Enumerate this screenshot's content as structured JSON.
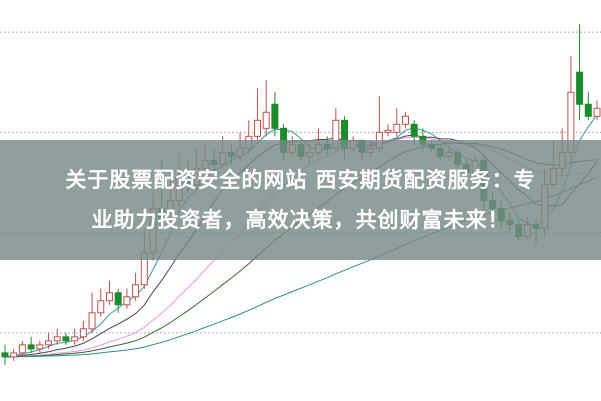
{
  "banner": {
    "line1": "关于股票配资安全的网站 西安期货配资服务：专",
    "line2": "业助力投资者，高效决策，共创财富未来！"
  },
  "colors": {
    "up": "#c0504d",
    "down": "#1e8a2e",
    "grid": "#9a9a9a",
    "ma_lines": [
      "#3a9aa0",
      "#5a3a5a",
      "#e79ad8",
      "#2f6b2f",
      "#2f8a8a"
    ]
  },
  "chart_data": {
    "type": "candlestick",
    "title": "",
    "xlabel": "",
    "ylabel": "",
    "ylim": [
      0,
      100
    ],
    "grid": true,
    "gridlines_y": [
      17,
      42,
      67,
      92
    ],
    "moving_average_periods": [
      5,
      10,
      20,
      30,
      60
    ],
    "ohlc": [
      [
        12,
        14,
        9,
        11
      ],
      [
        11,
        13,
        10,
        12
      ],
      [
        12,
        15,
        11,
        14
      ],
      [
        14,
        16,
        12,
        13
      ],
      [
        13,
        15,
        12,
        14
      ],
      [
        14,
        17,
        13,
        15
      ],
      [
        15,
        18,
        14,
        16
      ],
      [
        16,
        17,
        14,
        15
      ],
      [
        15,
        18,
        14,
        16
      ],
      [
        16,
        20,
        15,
        18
      ],
      [
        18,
        27,
        17,
        22
      ],
      [
        22,
        28,
        21,
        25
      ],
      [
        25,
        30,
        24,
        27
      ],
      [
        27,
        28,
        22,
        24
      ],
      [
        24,
        28,
        23,
        26
      ],
      [
        26,
        32,
        25,
        29
      ],
      [
        29,
        43,
        28,
        37
      ],
      [
        37,
        52,
        35,
        48
      ],
      [
        48,
        60,
        43,
        45
      ],
      [
        45,
        55,
        44,
        50
      ],
      [
        50,
        62,
        48,
        56
      ],
      [
        56,
        60,
        52,
        54
      ],
      [
        54,
        63,
        53,
        58
      ],
      [
        58,
        64,
        56,
        60
      ],
      [
        60,
        63,
        57,
        59
      ],
      [
        59,
        66,
        58,
        62
      ],
      [
        62,
        64,
        59,
        61
      ],
      [
        61,
        67,
        60,
        63
      ],
      [
        63,
        70,
        62,
        66
      ],
      [
        66,
        78,
        65,
        70
      ],
      [
        68,
        80,
        66,
        72
      ],
      [
        74,
        77,
        66,
        68
      ],
      [
        68,
        69,
        60,
        62
      ],
      [
        62,
        66,
        61,
        64
      ],
      [
        64,
        65,
        60,
        61
      ],
      [
        61,
        64,
        59,
        62
      ],
      [
        62,
        68,
        61,
        64
      ],
      [
        64,
        66,
        61,
        63
      ],
      [
        63,
        73,
        62,
        70
      ],
      [
        70,
        71,
        60,
        63
      ],
      [
        63,
        66,
        62,
        65
      ],
      [
        65,
        64,
        60,
        62
      ],
      [
        62,
        65,
        61,
        63
      ],
      [
        63,
        76,
        62,
        67
      ],
      [
        67,
        69,
        66,
        67.5
      ],
      [
        67,
        73,
        66,
        69
      ],
      [
        69,
        72,
        68,
        71
      ],
      [
        69,
        70,
        64,
        66
      ],
      [
        66,
        68,
        62,
        64
      ],
      [
        64,
        65,
        62,
        63
      ],
      [
        63,
        64,
        60,
        61
      ],
      [
        61,
        63,
        60,
        62
      ],
      [
        62,
        63,
        58,
        59
      ],
      [
        59,
        60,
        56,
        57
      ],
      [
        57,
        61,
        56,
        60
      ],
      [
        60,
        61,
        47,
        50
      ],
      [
        50,
        52,
        45,
        48
      ],
      [
        48,
        50,
        43,
        45
      ],
      [
        45,
        47,
        42,
        44
      ],
      [
        44,
        45,
        40,
        41
      ],
      [
        41,
        46,
        40,
        44
      ],
      [
        44,
        45,
        39,
        43
      ],
      [
        43,
        58,
        41,
        54
      ],
      [
        54,
        65,
        53,
        58
      ],
      [
        58,
        68,
        56,
        62
      ],
      [
        62,
        86,
        60,
        77
      ],
      [
        82,
        94,
        70,
        74
      ],
      [
        74,
        77,
        70,
        71
      ],
      [
        71,
        75,
        70,
        73
      ]
    ]
  }
}
